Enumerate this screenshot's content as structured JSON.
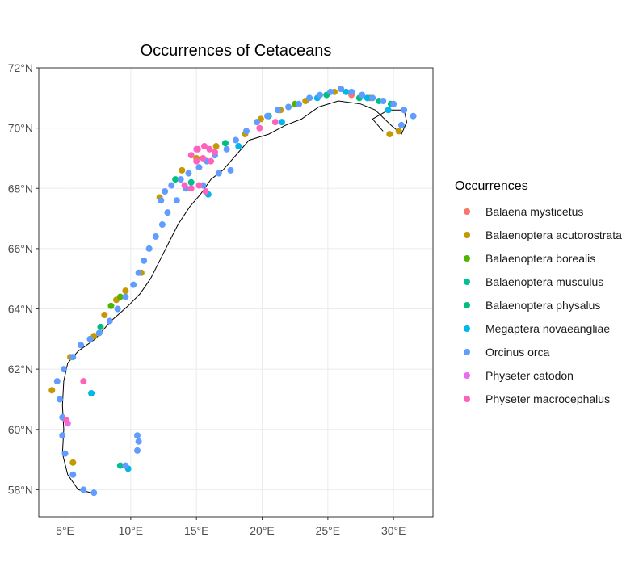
{
  "chart_data": {
    "type": "scatter",
    "title": "Occurrences of Cetaceans",
    "xlabel": "",
    "ylabel": "",
    "xlim": [
      3.0,
      33.0
    ],
    "ylim": [
      57.1,
      72.0
    ],
    "x_ticks": [
      5,
      10,
      15,
      20,
      25,
      30
    ],
    "x_tick_labels": [
      "5°E",
      "10°E",
      "15°E",
      "20°E",
      "25°E",
      "30°E"
    ],
    "y_ticks": [
      58,
      60,
      62,
      64,
      66,
      68,
      70,
      72
    ],
    "y_tick_labels": [
      "58°N",
      "60°N",
      "62°N",
      "64°N",
      "66°N",
      "68°N",
      "70°N",
      "72°N"
    ],
    "grid": true,
    "legend_title": "Occurrences",
    "legend_position": "right",
    "coastline": [
      [
        7.0,
        57.9
      ],
      [
        6.0,
        58.0
      ],
      [
        5.2,
        58.5
      ],
      [
        4.8,
        59.2
      ],
      [
        4.9,
        60.0
      ],
      [
        4.8,
        60.8
      ],
      [
        4.9,
        61.6
      ],
      [
        5.2,
        62.2
      ],
      [
        6.0,
        62.6
      ],
      [
        7.3,
        63.0
      ],
      [
        8.5,
        63.6
      ],
      [
        9.8,
        64.1
      ],
      [
        10.7,
        64.5
      ],
      [
        11.5,
        65.0
      ],
      [
        12.2,
        65.6
      ],
      [
        12.9,
        66.2
      ],
      [
        13.6,
        66.8
      ],
      [
        14.5,
        67.4
      ],
      [
        15.3,
        67.8
      ],
      [
        16.1,
        68.3
      ],
      [
        17.0,
        68.6
      ],
      [
        18.2,
        69.2
      ],
      [
        19.0,
        69.6
      ],
      [
        20.5,
        69.8
      ],
      [
        21.8,
        70.1
      ],
      [
        23.0,
        70.3
      ],
      [
        24.3,
        70.7
      ],
      [
        25.8,
        70.9
      ],
      [
        27.5,
        70.8
      ],
      [
        28.6,
        70.6
      ],
      [
        29.8,
        70.1
      ],
      [
        30.6,
        69.8
      ],
      [
        31.0,
        70.2
      ],
      [
        30.8,
        70.6
      ],
      [
        29.6,
        70.6
      ],
      [
        28.4,
        70.3
      ],
      [
        29.2,
        69.9
      ]
    ],
    "series": [
      {
        "name": "Balaena mysticetus",
        "color": "#F8766D",
        "points": [
          [
            26.8,
            71.1
          ]
        ]
      },
      {
        "name": "Balaenoptera acutorostrata",
        "color": "#C49A00",
        "points": [
          [
            4.0,
            61.3
          ],
          [
            5.4,
            62.4
          ],
          [
            7.2,
            63.1
          ],
          [
            8.0,
            63.8
          ],
          [
            8.9,
            64.3
          ],
          [
            9.6,
            64.6
          ],
          [
            10.8,
            65.2
          ],
          [
            12.2,
            67.7
          ],
          [
            13.9,
            68.6
          ],
          [
            15.0,
            69.0
          ],
          [
            16.5,
            69.4
          ],
          [
            18.7,
            69.8
          ],
          [
            19.9,
            70.3
          ],
          [
            21.4,
            70.6
          ],
          [
            23.3,
            70.9
          ],
          [
            25.5,
            71.2
          ],
          [
            28.2,
            71.0
          ],
          [
            29.7,
            69.8
          ],
          [
            30.4,
            69.9
          ],
          [
            5.6,
            58.9
          ]
        ]
      },
      {
        "name": "Balaenoptera borealis",
        "color": "#53B400",
        "points": [
          [
            8.5,
            64.1
          ],
          [
            9.2,
            64.4
          ],
          [
            22.5,
            70.8
          ]
        ]
      },
      {
        "name": "Balaenoptera musculus",
        "color": "#00C094",
        "points": [
          [
            9.2,
            58.8
          ],
          [
            14.6,
            68.2
          ],
          [
            20.5,
            70.4
          ]
        ]
      },
      {
        "name": "Balaenoptera physalus",
        "color": "#00BF7D",
        "points": [
          [
            7.7,
            63.4
          ],
          [
            13.4,
            68.3
          ],
          [
            17.2,
            69.5
          ],
          [
            24.9,
            71.1
          ],
          [
            27.4,
            71.0
          ],
          [
            28.9,
            70.9
          ],
          [
            29.8,
            70.8
          ]
        ]
      },
      {
        "name": "Megaptera novaeangliae",
        "color": "#00B6EB",
        "points": [
          [
            7.0,
            61.2
          ],
          [
            9.8,
            58.7
          ],
          [
            15.9,
            67.8
          ],
          [
            18.2,
            69.4
          ],
          [
            21.5,
            70.2
          ],
          [
            24.2,
            71.0
          ],
          [
            26.4,
            71.2
          ],
          [
            28.0,
            71.0
          ],
          [
            29.6,
            70.6
          ]
        ]
      },
      {
        "name": "Orcinus orca",
        "color": "#619CFF",
        "points": [
          [
            4.4,
            61.6
          ],
          [
            4.6,
            61.0
          ],
          [
            4.8,
            60.4
          ],
          [
            4.8,
            59.8
          ],
          [
            5.0,
            59.2
          ],
          [
            5.6,
            58.5
          ],
          [
            6.4,
            58.0
          ],
          [
            7.2,
            57.9
          ],
          [
            4.9,
            62.0
          ],
          [
            5.6,
            62.4
          ],
          [
            6.2,
            62.8
          ],
          [
            6.9,
            63.0
          ],
          [
            7.6,
            63.2
          ],
          [
            8.4,
            63.6
          ],
          [
            9.0,
            64.0
          ],
          [
            9.6,
            64.4
          ],
          [
            10.2,
            64.8
          ],
          [
            10.6,
            65.2
          ],
          [
            11.0,
            65.6
          ],
          [
            11.4,
            66.0
          ],
          [
            11.9,
            66.4
          ],
          [
            12.4,
            66.8
          ],
          [
            12.8,
            67.2
          ],
          [
            12.3,
            67.6
          ],
          [
            12.6,
            67.9
          ],
          [
            13.1,
            68.1
          ],
          [
            13.8,
            68.3
          ],
          [
            14.4,
            68.5
          ],
          [
            15.2,
            68.7
          ],
          [
            15.8,
            68.9
          ],
          [
            16.4,
            69.1
          ],
          [
            17.3,
            69.3
          ],
          [
            18.0,
            69.6
          ],
          [
            18.8,
            69.9
          ],
          [
            19.6,
            70.2
          ],
          [
            20.4,
            70.4
          ],
          [
            21.2,
            70.6
          ],
          [
            22.0,
            70.7
          ],
          [
            22.8,
            70.8
          ],
          [
            23.6,
            71.0
          ],
          [
            24.4,
            71.1
          ],
          [
            25.2,
            71.2
          ],
          [
            26.0,
            71.3
          ],
          [
            26.8,
            71.2
          ],
          [
            27.6,
            71.1
          ],
          [
            28.4,
            71.0
          ],
          [
            29.2,
            70.9
          ],
          [
            30.0,
            70.8
          ],
          [
            30.8,
            70.6
          ],
          [
            31.5,
            70.4
          ],
          [
            30.6,
            70.1
          ],
          [
            13.5,
            67.6
          ],
          [
            14.2,
            68.0
          ],
          [
            15.5,
            68.1
          ],
          [
            16.7,
            68.5
          ],
          [
            17.6,
            68.6
          ],
          [
            10.5,
            59.8
          ],
          [
            10.6,
            59.6
          ],
          [
            10.5,
            59.3
          ],
          [
            9.6,
            58.8
          ]
        ]
      },
      {
        "name": "Physeter catodon",
        "color": "#E76BF3",
        "points": [
          [
            5.2,
            60.2
          ],
          [
            15.0,
            69.3
          ]
        ]
      },
      {
        "name": "Physeter macrocephalus",
        "color": "#FF62BC",
        "points": [
          [
            14.6,
            69.1
          ],
          [
            15.1,
            69.3
          ],
          [
            15.6,
            69.4
          ],
          [
            16.0,
            69.3
          ],
          [
            16.4,
            69.2
          ],
          [
            15.0,
            68.9
          ],
          [
            15.5,
            69.0
          ],
          [
            16.1,
            68.9
          ],
          [
            14.1,
            68.1
          ],
          [
            14.6,
            68.0
          ],
          [
            15.2,
            68.1
          ],
          [
            15.7,
            67.9
          ],
          [
            19.8,
            70.0
          ],
          [
            21.0,
            70.2
          ],
          [
            6.4,
            61.6
          ],
          [
            5.1,
            60.3
          ]
        ]
      }
    ]
  }
}
